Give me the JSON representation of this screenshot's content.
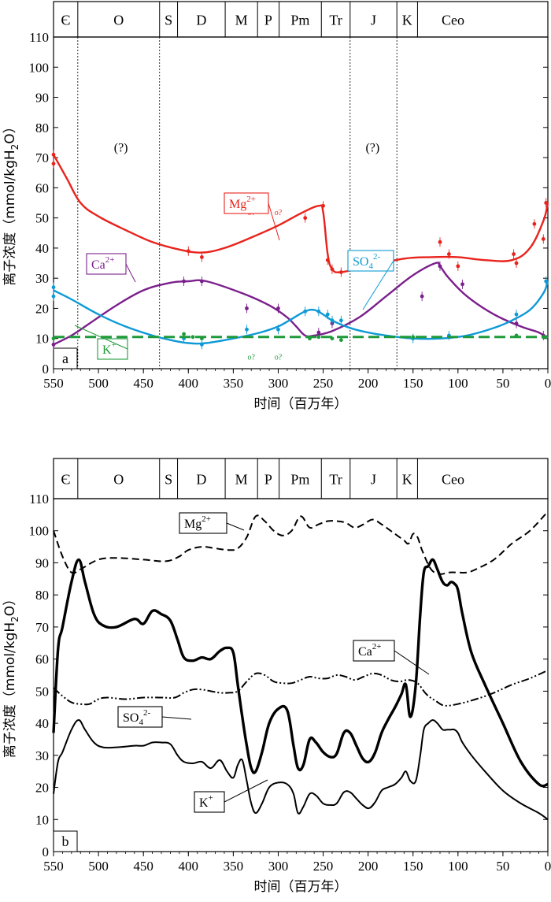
{
  "chart_data": [
    {
      "panel": "a",
      "type": "line",
      "periods": [
        "Є",
        "O",
        "S",
        "D",
        "M",
        "P",
        "Pm",
        "Tr",
        "J",
        "K",
        "Ceo"
      ],
      "xlabel": "时间（百万年）",
      "ylabel": "离子浓度（mmol/kgH",
      "ylabel_sub": "2",
      "ylabel_end": "O）",
      "xlim": [
        550,
        0
      ],
      "ylim": [
        0,
        110
      ],
      "xticks": [
        550,
        500,
        450,
        400,
        350,
        300,
        250,
        200,
        150,
        100,
        50,
        0
      ],
      "yticks": [
        0,
        10,
        20,
        30,
        40,
        50,
        60,
        70,
        80,
        90,
        100,
        110
      ],
      "unknown_mark": "(?)",
      "marker_note": "o?",
      "series": [
        {
          "name": "Mg",
          "label_base": "Mg",
          "label_sup": "2+",
          "color": "#e8231c",
          "x": [
            550,
            535,
            520,
            500,
            470,
            440,
            410,
            385,
            360,
            330,
            300,
            275,
            255,
            250,
            245,
            240,
            230,
            200,
            160,
            130,
            100,
            70,
            40,
            20,
            5,
            0
          ],
          "y": [
            71,
            63,
            55,
            50.5,
            46,
            42,
            39.5,
            38.5,
            40,
            43.5,
            47.5,
            51.5,
            54,
            52,
            38,
            33,
            32,
            34,
            36.5,
            37,
            37,
            36,
            36,
            40,
            49,
            55
          ]
        },
        {
          "name": "Ca",
          "label_base": "Ca",
          "label_sup": "2+",
          "color": "#7b1f8c",
          "x": [
            550,
            530,
            510,
            480,
            450,
            420,
            400,
            380,
            340,
            310,
            290,
            280,
            270,
            260,
            240,
            210,
            180,
            150,
            125,
            120,
            110,
            90,
            60,
            30,
            10,
            0
          ],
          "y": [
            8,
            11,
            15,
            21,
            26,
            28.5,
            29,
            29,
            25,
            21,
            17,
            14,
            11,
            11,
            12.5,
            17,
            24,
            31,
            35,
            34,
            30,
            24,
            18,
            14,
            12,
            10
          ]
        },
        {
          "name": "SO4",
          "label_base": "SO",
          "label_sub": "4",
          "label_sup": "2-",
          "color": "#0e9ad6",
          "x": [
            550,
            530,
            500,
            470,
            440,
            420,
            400,
            380,
            350,
            320,
            300,
            285,
            270,
            260,
            250,
            240,
            220,
            200,
            180,
            150,
            120,
            90,
            60,
            40,
            20,
            5,
            0
          ],
          "y": [
            26,
            23,
            18,
            14,
            11,
            9.5,
            8.5,
            8.5,
            10,
            12,
            14,
            16.5,
            19,
            19.5,
            18,
            16,
            13.5,
            12,
            11,
            10,
            10,
            11,
            13.5,
            16,
            19.5,
            25,
            29
          ]
        },
        {
          "name": "K",
          "label_base": "K",
          "label_sup": "+",
          "color": "#1f9a3a",
          "dashed": true,
          "x": [
            550,
            0
          ],
          "y": [
            10.5,
            10.5
          ]
        }
      ],
      "points": {
        "Mg": [
          [
            550,
            71
          ],
          [
            550,
            68
          ],
          [
            400,
            39
          ],
          [
            385,
            37
          ],
          [
            270,
            50
          ],
          [
            250,
            54
          ],
          [
            245,
            36
          ],
          [
            240,
            33
          ],
          [
            230,
            32
          ],
          [
            120,
            42
          ],
          [
            110,
            38
          ],
          [
            100,
            34
          ],
          [
            38,
            38
          ],
          [
            35,
            35
          ],
          [
            15,
            48
          ],
          [
            5,
            43
          ],
          [
            2,
            55
          ]
        ],
        "Ca": [
          [
            550,
            8
          ],
          [
            405,
            29
          ],
          [
            385,
            29
          ],
          [
            335,
            20
          ],
          [
            300,
            20
          ],
          [
            255,
            12
          ],
          [
            240,
            15
          ],
          [
            140,
            24
          ],
          [
            120,
            34
          ],
          [
            95,
            28
          ],
          [
            35,
            15
          ],
          [
            5,
            11
          ]
        ],
        "SO4": [
          [
            550,
            27
          ],
          [
            550,
            24
          ],
          [
            405,
            10
          ],
          [
            385,
            8
          ],
          [
            335,
            13
          ],
          [
            300,
            13
          ],
          [
            270,
            19
          ],
          [
            255,
            19
          ],
          [
            245,
            18
          ],
          [
            240,
            16
          ],
          [
            230,
            16
          ],
          [
            150,
            10
          ],
          [
            110,
            11
          ],
          [
            35,
            18
          ],
          [
            2,
            29
          ]
        ],
        "K": [
          [
            550,
            10
          ],
          [
            405,
            11.5
          ],
          [
            395,
            10.5
          ],
          [
            385,
            10
          ],
          [
            265,
            10
          ],
          [
            255,
            10.5
          ],
          [
            240,
            10
          ],
          [
            230,
            9.5
          ],
          [
            150,
            10.5
          ],
          [
            35,
            11
          ],
          [
            5,
            10.5
          ],
          [
            2,
            10.5
          ]
        ]
      },
      "unknown_markers": [
        [
          330,
          3
        ],
        [
          300,
          3
        ]
      ],
      "mg_question_markers": [
        [
          330,
          51
        ],
        [
          300,
          51
        ]
      ]
    },
    {
      "panel": "b",
      "type": "line",
      "periods": [
        "Є",
        "O",
        "S",
        "D",
        "M",
        "P",
        "Pm",
        "Tr",
        "J",
        "K",
        "Ceo"
      ],
      "xlabel": "时间（百万年）",
      "ylabel": "离子浓度（mmol/kgH",
      "ylabel_sub": "2",
      "ylabel_end": "O）",
      "xlim": [
        550,
        0
      ],
      "ylim": [
        0,
        110
      ],
      "xticks": [
        550,
        500,
        450,
        400,
        350,
        300,
        250,
        200,
        150,
        100,
        50,
        0
      ],
      "yticks": [
        0,
        10,
        20,
        30,
        40,
        50,
        60,
        70,
        80,
        90,
        100,
        110
      ],
      "series": [
        {
          "name": "Mg",
          "label_base": "Mg",
          "label_sup": "2+",
          "color": "#000000",
          "style": "dashed",
          "x": [
            550,
            540,
            530,
            520,
            500,
            480,
            450,
            425,
            410,
            400,
            385,
            370,
            355,
            345,
            335,
            325,
            315,
            305,
            295,
            285,
            275,
            265,
            255,
            245,
            235,
            225,
            215,
            205,
            195,
            185,
            175,
            165,
            160,
            155,
            150,
            145,
            140,
            130,
            120,
            110,
            100,
            90,
            80,
            60,
            40,
            20,
            0
          ],
          "y": [
            100,
            92,
            87,
            88,
            91,
            91.5,
            91,
            90.5,
            92,
            94,
            95,
            94.5,
            94,
            94.5,
            98,
            104.5,
            103,
            100,
            98.5,
            100,
            104.5,
            101,
            102,
            103,
            103,
            102.5,
            101,
            102,
            103.5,
            102,
            100,
            98,
            97,
            96,
            99,
            98,
            94,
            88,
            86.5,
            87,
            87,
            87,
            88,
            91,
            96,
            100,
            106
          ]
        },
        {
          "name": "Ca",
          "label_base": "Ca",
          "label_sup": "2+",
          "color": "#000000",
          "style": "bold",
          "x": [
            550,
            545,
            540,
            530,
            522,
            515,
            505,
            495,
            480,
            460,
            450,
            440,
            430,
            420,
            412,
            405,
            395,
            385,
            375,
            365,
            357,
            350,
            345,
            340,
            335,
            330,
            325,
            318,
            310,
            300,
            290,
            283,
            278,
            272,
            265,
            258,
            250,
            242,
            235,
            227,
            220,
            213,
            206,
            199,
            192,
            185,
            178,
            170,
            163,
            158,
            153,
            147,
            142,
            138,
            133,
            128,
            123,
            117,
            112,
            108,
            104,
            100,
            95,
            85,
            70,
            50,
            30,
            10,
            0
          ],
          "y": [
            37,
            63,
            70,
            84,
            91,
            84,
            74,
            70.5,
            70,
            72.5,
            71,
            75,
            74,
            72,
            66,
            60.5,
            59.5,
            60.5,
            60,
            62.5,
            63.5,
            62,
            52,
            42,
            33,
            26,
            25,
            31,
            40,
            44.5,
            44,
            33,
            26,
            27,
            35,
            34,
            31,
            29.5,
            30.5,
            37,
            37,
            33,
            29,
            28,
            31,
            37,
            41,
            45,
            49,
            52,
            42,
            52,
            74,
            87,
            89,
            91,
            88,
            84,
            83,
            84,
            83.5,
            81.5,
            74,
            62,
            52,
            40,
            28,
            21,
            21
          ]
        },
        {
          "name": "SO4",
          "label_base": "SO",
          "label_sub": "4",
          "label_sup": "2-",
          "color": "#000000",
          "style": "dashdotdot",
          "x": [
            550,
            540,
            530,
            520,
            510,
            500,
            490,
            470,
            450,
            430,
            415,
            405,
            395,
            385,
            375,
            365,
            355,
            345,
            335,
            325,
            315,
            305,
            295,
            285,
            275,
            265,
            255,
            245,
            235,
            225,
            215,
            205,
            195,
            185,
            175,
            165,
            155,
            145,
            135,
            125,
            115,
            100,
            80,
            60,
            40,
            20,
            0
          ],
          "y": [
            51,
            48.5,
            46.5,
            46,
            46,
            47.5,
            48,
            47.5,
            48,
            48,
            48,
            49.5,
            50.5,
            50.5,
            50,
            49.5,
            49.5,
            50,
            53,
            55.5,
            55,
            53,
            52.5,
            52.5,
            53.5,
            54.5,
            54,
            54,
            55,
            54.5,
            53.5,
            54.5,
            55.5,
            55,
            53.5,
            53,
            53.5,
            52.5,
            49,
            47,
            45.5,
            46,
            47.5,
            49.5,
            52,
            54,
            56.5
          ]
        },
        {
          "name": "K",
          "label_base": "K",
          "label_sup": "+",
          "color": "#000000",
          "style": "solid",
          "x": [
            550,
            545,
            540,
            530,
            522,
            515,
            505,
            495,
            480,
            460,
            450,
            440,
            430,
            420,
            412,
            405,
            395,
            385,
            375,
            365,
            357,
            350,
            345,
            340,
            335,
            330,
            325,
            318,
            310,
            300,
            290,
            283,
            278,
            272,
            265,
            258,
            250,
            242,
            235,
            227,
            220,
            213,
            206,
            199,
            192,
            185,
            178,
            170,
            163,
            158,
            153,
            147,
            142,
            138,
            133,
            128,
            123,
            117,
            112,
            108,
            104,
            100,
            95,
            85,
            70,
            50,
            30,
            10,
            0
          ],
          "y": [
            18,
            28,
            31,
            38,
            41,
            38,
            34,
            32.5,
            32.5,
            33,
            33,
            34,
            34,
            33.5,
            30,
            28,
            27.5,
            28,
            26,
            28.5,
            25,
            23,
            27,
            28.5,
            22,
            15,
            12,
            15,
            20,
            21.5,
            21,
            18,
            12,
            14,
            18,
            17.5,
            15,
            14.5,
            15,
            18.5,
            18.5,
            16.5,
            14.5,
            13.5,
            15.5,
            19,
            20,
            21,
            23,
            25,
            22,
            22,
            30,
            38,
            40,
            41,
            40,
            38,
            38,
            38,
            38,
            37,
            34,
            30,
            25,
            19,
            15,
            12,
            10
          ]
        }
      ]
    }
  ]
}
